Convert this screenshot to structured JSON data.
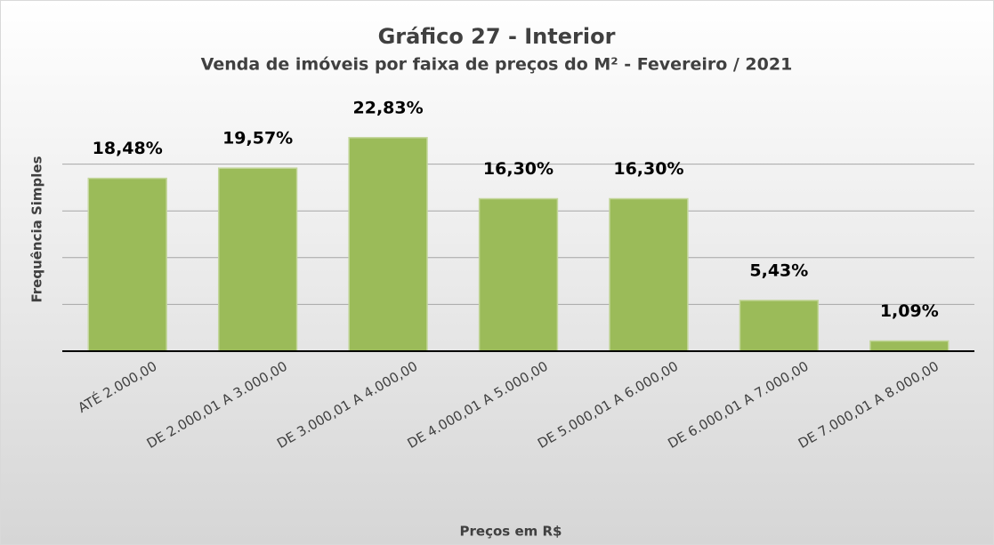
{
  "chart_data": {
    "type": "bar",
    "title": "Gráfico 27 - Interior",
    "subtitle": "Venda de imóveis por faixa de preços do M² - Fevereiro / 2021",
    "x_label": "Preços em R$",
    "y_label": "Frequência Simples",
    "categories": [
      "ATÉ 2.000,00",
      "DE 2.000,01 A 3.000,00",
      "DE 3.000,01 A 4.000,00",
      "DE 4.000,01 A 5.000,00",
      "DE 5.000,01 A 6.000,00",
      "DE 6.000,01 A 7.000,00",
      "DE 7.000,01 A 8.000,00"
    ],
    "values": [
      18.48,
      19.57,
      22.83,
      16.3,
      16.3,
      5.43,
      1.09
    ],
    "value_labels": [
      "18,48%",
      "19,57%",
      "22,83%",
      "16,30%",
      "16,30%",
      "5,43%",
      "1,09%"
    ],
    "color": "#9bbb59",
    "ylim": [
      0,
      25
    ],
    "yticks": [
      0,
      5,
      10,
      15,
      20
    ],
    "grid": true
  }
}
